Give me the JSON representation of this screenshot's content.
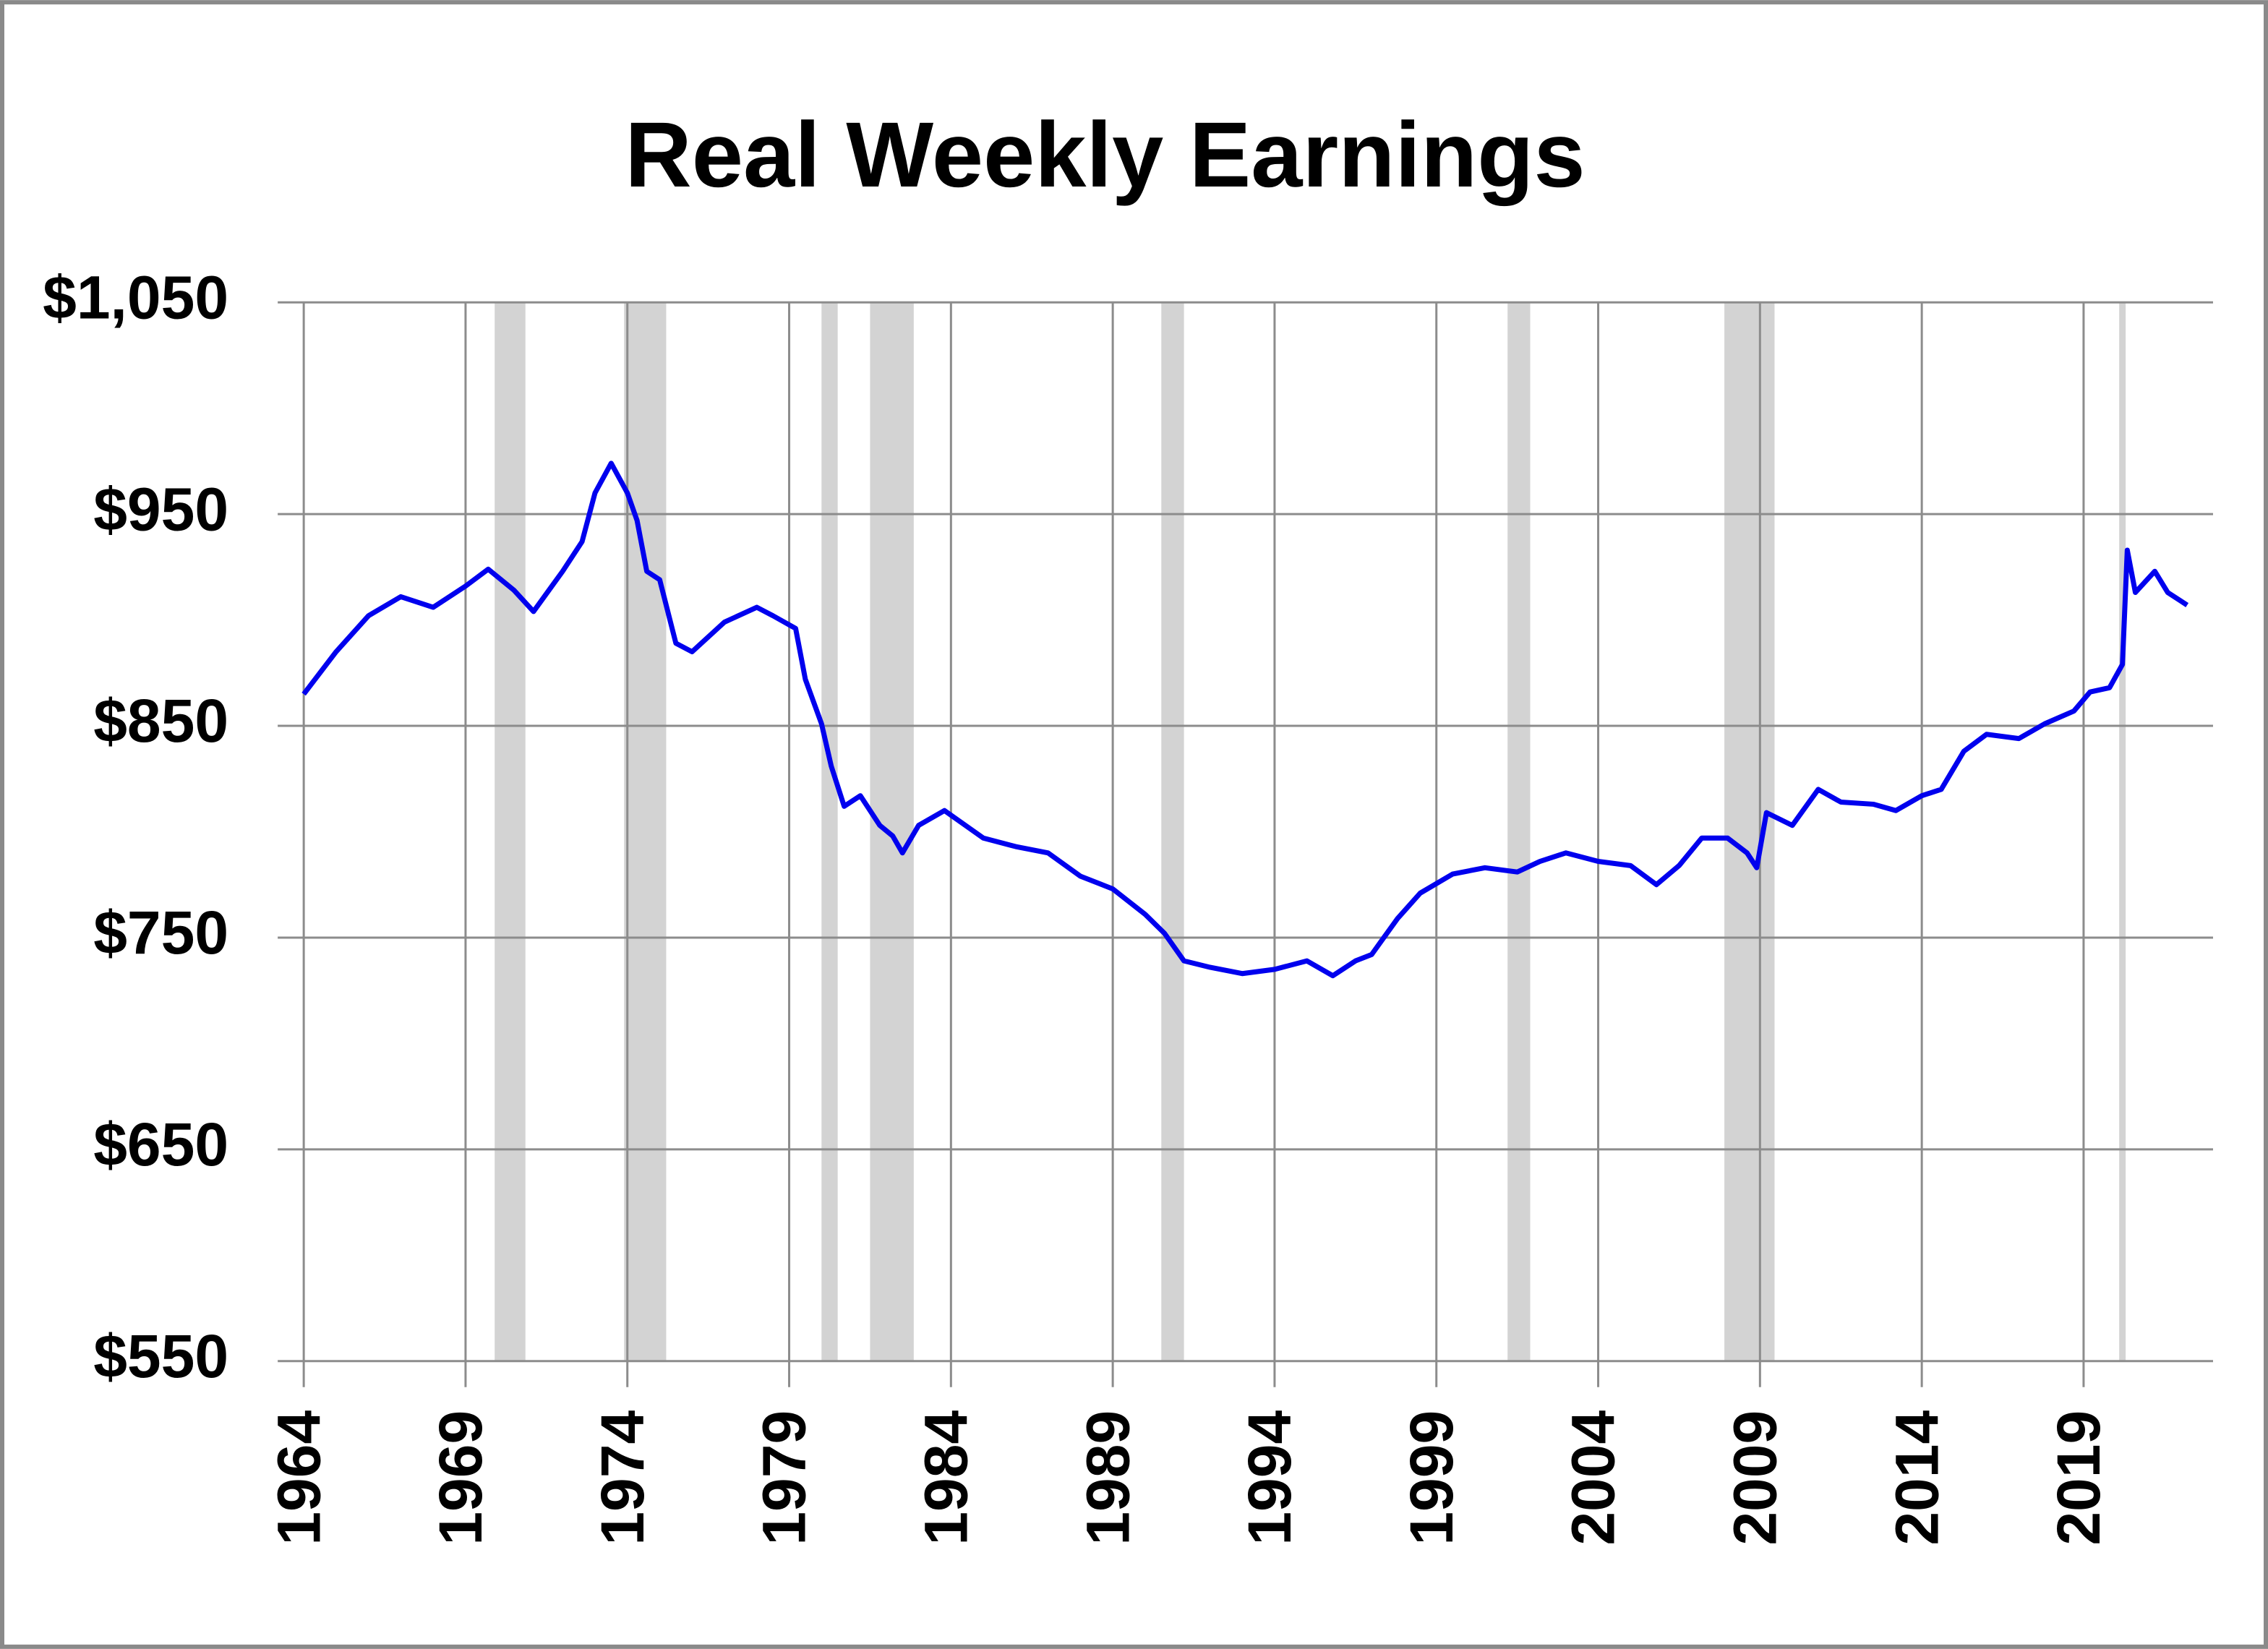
{
  "chart_data": {
    "type": "line",
    "title": "Real Weekly Earnings",
    "x": [
      1964.0,
      1965,
      1966,
      1967,
      1968,
      1969,
      1969.7,
      1970.5,
      1971.1,
      1972,
      1972.6,
      1973.0,
      1973.5,
      1974.0,
      1974.3,
      1974.6,
      1975.0,
      1975.5,
      1976,
      1977,
      1978,
      1978.5,
      1979.2,
      1979.5,
      1980,
      1980.3,
      1980.7,
      1981.2,
      1981.8,
      1982.2,
      1982.5,
      1983,
      1983.8,
      1985,
      1986,
      1987,
      1988,
      1989,
      1990,
      1990.6,
      1991.2,
      1992,
      1993,
      1994,
      1995,
      1995.8,
      1996.5,
      1997,
      1997.8,
      1998.5,
      1999.5,
      2000.5,
      2001.5,
      2002.2,
      2003,
      2004,
      2005,
      2005.8,
      2006.5,
      2007.2,
      2008,
      2008.6,
      2008.9,
      2009.2,
      2010,
      2010.8,
      2011.5,
      2012.5,
      2013.2,
      2014,
      2014.6,
      2015.3,
      2016,
      2017,
      2017.8,
      2018.7,
      2019.2,
      2019.8,
      2020.2,
      2020.35,
      2020.6,
      2021.2,
      2021.6,
      2022,
      2022.2
    ],
    "series": [
      {
        "color": "#0000ee",
        "values": [
          865,
          885,
          902,
          911,
          906,
          916,
          924,
          914,
          904,
          923,
          937,
          960,
          974,
          960,
          947,
          923,
          919,
          889,
          885,
          899,
          906,
          902,
          896,
          872,
          851,
          831,
          812,
          817,
          803,
          798,
          790,
          803,
          810,
          797,
          793,
          790,
          779,
          773,
          761,
          752,
          739,
          736,
          733,
          735,
          739,
          732,
          739,
          742,
          759,
          771,
          780,
          783,
          781,
          786,
          790,
          786,
          784,
          775,
          784,
          797,
          797,
          790,
          783,
          809,
          803,
          820,
          814,
          813,
          810,
          817,
          820,
          838,
          846,
          844,
          851,
          857,
          866,
          868,
          879,
          933,
          913,
          923,
          913,
          909,
          907
        ]
      }
    ],
    "shaded_periods": [
      [
        1969.9,
        1970.85
      ],
      [
        1973.9,
        1975.2
      ],
      [
        1980.0,
        1980.5
      ],
      [
        1981.5,
        1982.85
      ],
      [
        1990.5,
        1991.2
      ],
      [
        2001.2,
        2001.9
      ],
      [
        2007.9,
        2009.45
      ],
      [
        2020.1,
        2020.3
      ]
    ],
    "shade_color": "#d3d3d3",
    "xlim": [
      1964,
      2023
    ],
    "xticks": [
      1964,
      1969,
      1974,
      1979,
      1984,
      1989,
      1994,
      1999,
      2004,
      2009,
      2014,
      2019
    ],
    "ylim": [
      550,
      1050
    ],
    "yticks": [
      {
        "value": 550,
        "label": "$550"
      },
      {
        "value": 650,
        "label": "$650"
      },
      {
        "value": 750,
        "label": "$750"
      },
      {
        "value": 850,
        "label": "$850"
      },
      {
        "value": 950,
        "label": "$950"
      },
      {
        "value": 1050,
        "label": "$1,050"
      }
    ],
    "grid": true
  }
}
